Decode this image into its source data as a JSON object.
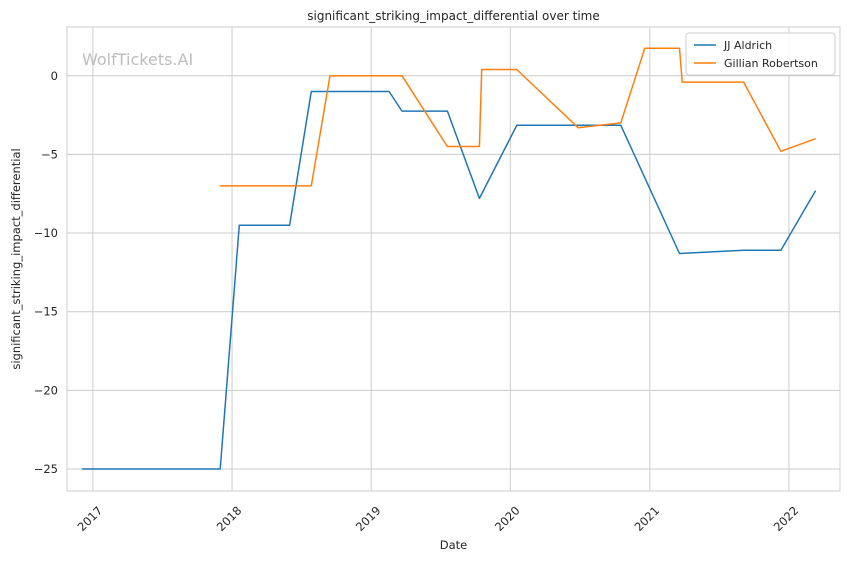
{
  "chart_data": {
    "type": "line",
    "title": "significant_striking_impact_differential over time",
    "xlabel": "Date",
    "ylabel": "significant_striking_impact_differential",
    "watermark": "WolfTickets.AI",
    "x_ticks": [
      "2017",
      "2018",
      "2019",
      "2020",
      "2021",
      "2022"
    ],
    "y_ticks": [
      "0",
      "−5",
      "−10",
      "−15",
      "−20",
      "−25"
    ],
    "y_tick_values": [
      0,
      -5,
      -10,
      -15,
      -20,
      -25
    ],
    "x_tick_dates": [
      "2017-01-01",
      "2018-01-01",
      "2019-01-01",
      "2020-01-01",
      "2021-01-01",
      "2022-01-01"
    ],
    "xlim": [
      "2016-10-25",
      "2022-05-15"
    ],
    "ylim": [
      -26.4,
      3.1
    ],
    "grid": true,
    "legend_position": "top-right",
    "colors": {
      "JJ Aldrich": "#1f77b4",
      "Gillian Robertson": "#ff7f0e"
    },
    "series": [
      {
        "name": "JJ Aldrich",
        "color": "#1f77b4",
        "points": [
          [
            "2016-12-03",
            -25.0
          ],
          [
            "2017-12-01",
            -25.0
          ],
          [
            "2018-01-20",
            -9.5
          ],
          [
            "2018-06-01",
            -9.5
          ],
          [
            "2018-07-28",
            -1.0
          ],
          [
            "2019-02-17",
            -1.0
          ],
          [
            "2019-03-23",
            -2.25
          ],
          [
            "2019-07-20",
            -2.25
          ],
          [
            "2019-10-12",
            -7.8
          ],
          [
            "2020-01-18",
            -3.15
          ],
          [
            "2020-10-17",
            -3.15
          ],
          [
            "2021-03-20",
            -11.3
          ],
          [
            "2021-09-04",
            -11.1
          ],
          [
            "2021-12-11",
            -11.1
          ],
          [
            "2022-03-12",
            -7.3
          ]
        ]
      },
      {
        "name": "Gillian Robertson",
        "color": "#ff7f0e",
        "points": [
          [
            "2017-12-01",
            -7.0
          ],
          [
            "2018-07-28",
            -7.0
          ],
          [
            "2018-09-15",
            0.0
          ],
          [
            "2019-03-23",
            0.0
          ],
          [
            "2019-07-20",
            -4.5
          ],
          [
            "2019-10-12",
            -4.5
          ],
          [
            "2019-10-18",
            0.4
          ],
          [
            "2020-01-18",
            0.4
          ],
          [
            "2020-06-27",
            -3.3
          ],
          [
            "2020-10-17",
            -3.0
          ],
          [
            "2020-12-19",
            1.75
          ],
          [
            "2021-03-20",
            1.75
          ],
          [
            "2021-03-27",
            -0.4
          ],
          [
            "2021-09-04",
            -0.4
          ],
          [
            "2021-12-11",
            -4.8
          ],
          [
            "2022-03-12",
            -4.0
          ]
        ]
      }
    ]
  }
}
